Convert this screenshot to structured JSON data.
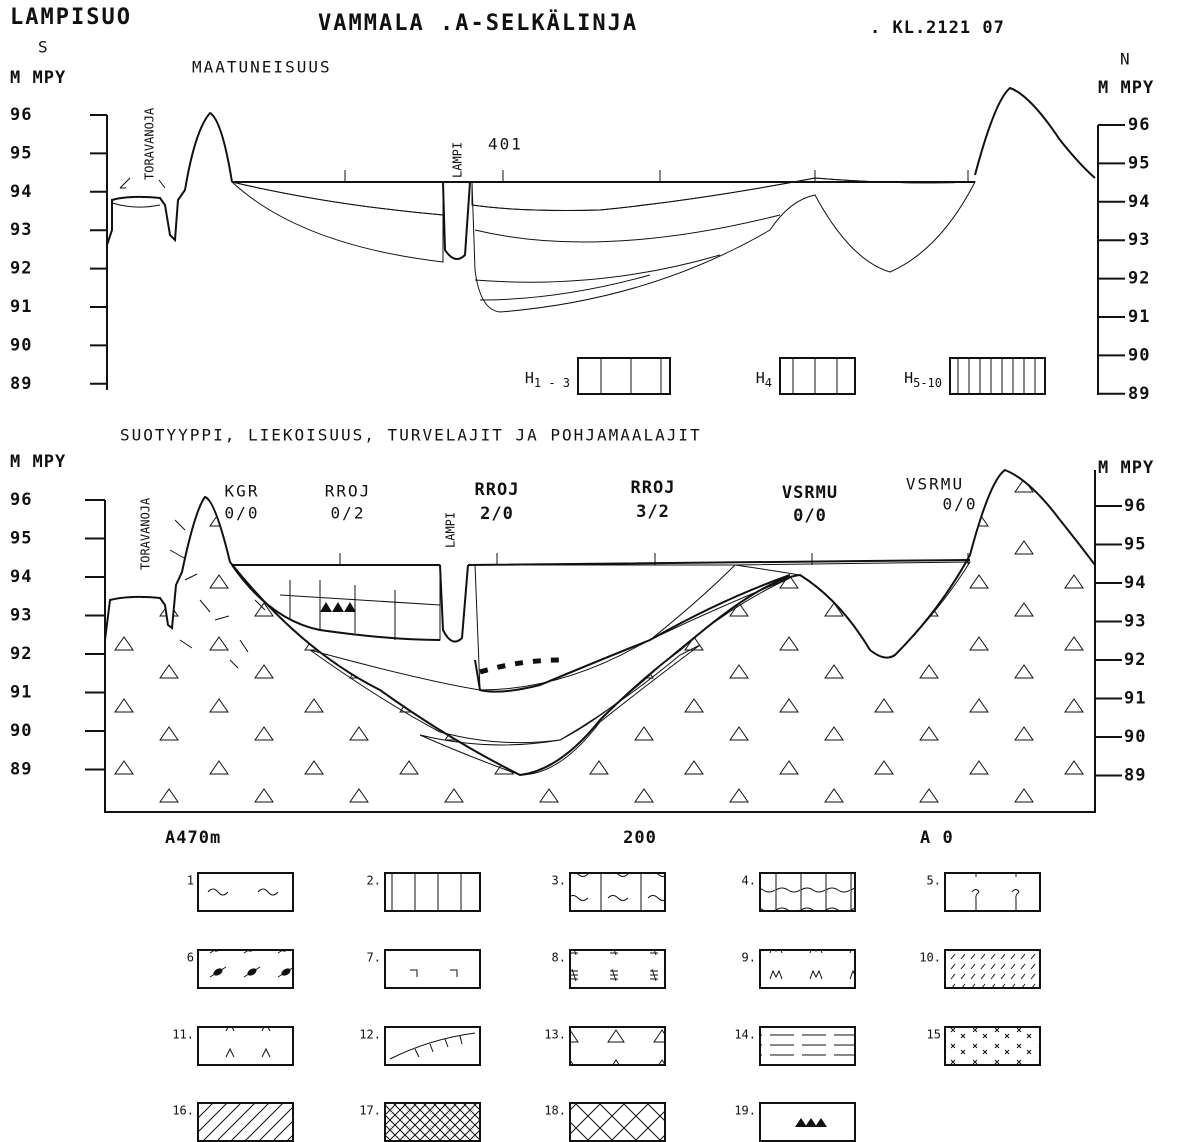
{
  "header": {
    "site": "LAMPISUO",
    "title": "VAMMALA .A-SELKÄLINJA",
    "sheet": ". KL.2121 07"
  },
  "top_panel": {
    "direction_left": "S",
    "direction_right": "N",
    "axis_label": "M MPY",
    "subtitle": "MAATUNEISUUS",
    "elevations": [
      96,
      95,
      94,
      93,
      92,
      91,
      90,
      89
    ],
    "ditch": "TORAVANOJA",
    "pond": "LAMPI",
    "point": "401",
    "legend": [
      {
        "base": "H",
        "sub": "1 - 3"
      },
      {
        "base": "H",
        "sub": "4"
      },
      {
        "base": "H",
        "sub": "5-10"
      }
    ]
  },
  "bottom_panel": {
    "heading": "SUOTYYPPI, LIEKOISUUS, TURVELAJIT JA POHJAMAALAJIT",
    "axis_label": "M MPY",
    "elevations": [
      96,
      95,
      94,
      93,
      92,
      91,
      90,
      89
    ],
    "ditch": "TORAVANOJA",
    "pond": "LAMPI",
    "sites": [
      {
        "type": "KGR",
        "code": "0/0"
      },
      {
        "type": "RROJ",
        "code": "0/2"
      },
      {
        "type": "RROJ",
        "code": "2/0"
      },
      {
        "type": "RROJ",
        "code": "3/2"
      },
      {
        "type": "VSRMU",
        "code": "0/0"
      },
      {
        "type": "VSRMU",
        "code": "0/0"
      }
    ],
    "distance_labels": [
      "A470m",
      "200",
      "A 0"
    ]
  },
  "legend": [
    "1",
    "2.",
    "3.",
    "4.",
    "5.",
    "6",
    "7.",
    "8.",
    "9.",
    "10.",
    "11.",
    "12.",
    "13.",
    "14.",
    "15",
    "16.",
    "17.",
    "18.",
    "19."
  ]
}
